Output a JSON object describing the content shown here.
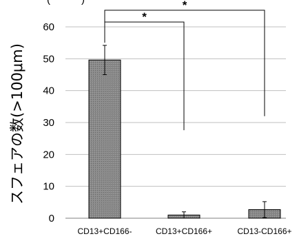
{
  "chart_data": {
    "type": "bar",
    "ylabel": "スフェアの数(>100μm)",
    "top_fragment": "(・・・)",
    "categories": [
      "CD13+CD166-",
      "CD13+CD166+",
      "CD13-CD166+"
    ],
    "values": [
      49.6,
      1.0,
      2.7
    ],
    "error": [
      4.6,
      1.0,
      2.5
    ],
    "ylim": [
      0,
      60
    ],
    "yticks": [
      0,
      10,
      20,
      30,
      40,
      50,
      60
    ],
    "grid": true,
    "bar_color": "#8a8a8a",
    "significance": [
      {
        "from": 0,
        "to": 1,
        "label": "*",
        "level": 61.5
      },
      {
        "from": 0,
        "to": 2,
        "label": "*",
        "level": 65.2
      }
    ]
  }
}
